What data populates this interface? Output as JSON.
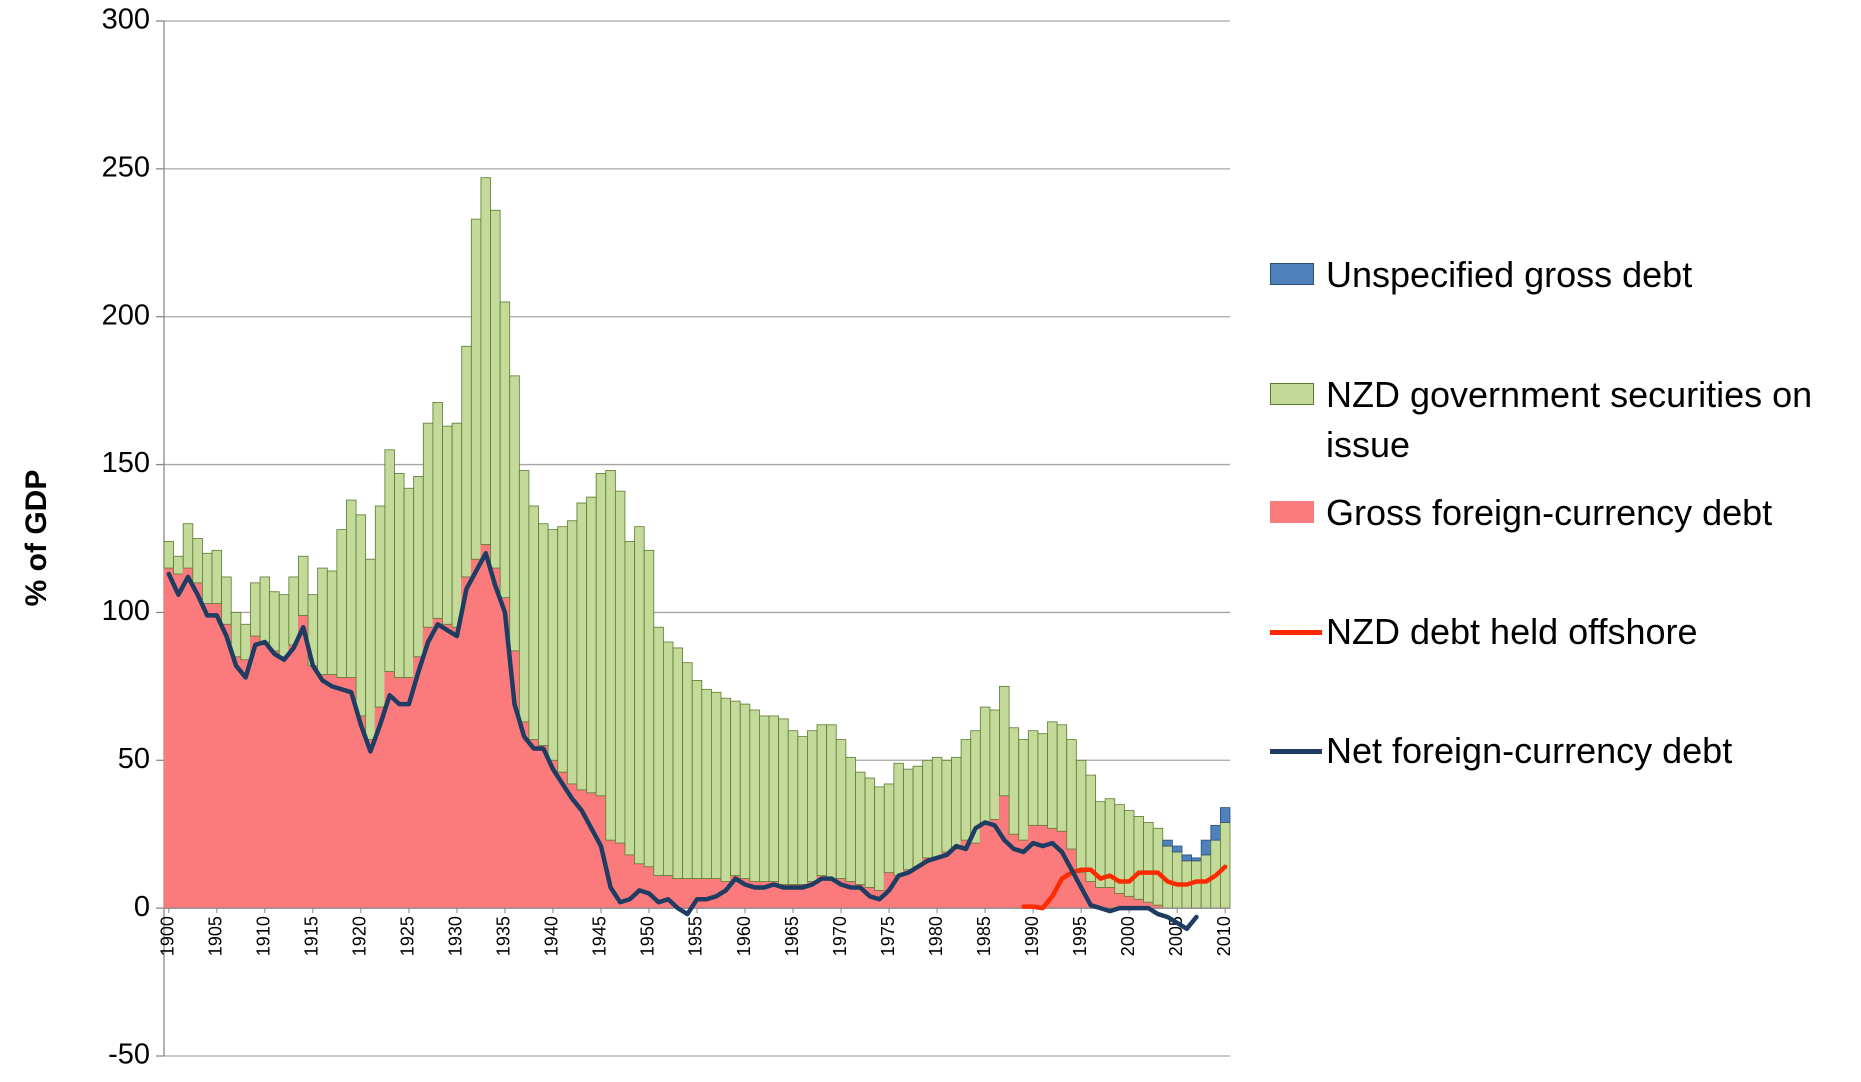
{
  "chart_data": {
    "type": "bar",
    "ylabel": "% of GDP",
    "x": [
      1900,
      1901,
      1902,
      1903,
      1904,
      1905,
      1906,
      1907,
      1908,
      1909,
      1910,
      1911,
      1912,
      1913,
      1914,
      1915,
      1916,
      1917,
      1918,
      1919,
      1920,
      1921,
      1922,
      1923,
      1924,
      1925,
      1926,
      1927,
      1928,
      1929,
      1930,
      1931,
      1932,
      1933,
      1934,
      1935,
      1936,
      1937,
      1938,
      1939,
      1940,
      1941,
      1942,
      1943,
      1944,
      1945,
      1946,
      1947,
      1948,
      1949,
      1950,
      1951,
      1952,
      1953,
      1954,
      1955,
      1956,
      1957,
      1958,
      1959,
      1960,
      1961,
      1962,
      1963,
      1964,
      1965,
      1966,
      1967,
      1968,
      1969,
      1970,
      1971,
      1972,
      1973,
      1974,
      1975,
      1976,
      1977,
      1978,
      1979,
      1980,
      1981,
      1982,
      1983,
      1984,
      1985,
      1986,
      1987,
      1988,
      1989,
      1990,
      1991,
      1992,
      1993,
      1994,
      1995,
      1996,
      1997,
      1998,
      1999,
      2000,
      2001,
      2002,
      2003,
      2004,
      2005,
      2006,
      2007,
      2008,
      2009,
      2010
    ],
    "xlim": [
      1899.5,
      2010.5
    ],
    "xticks": [
      1900,
      1905,
      1910,
      1915,
      1920,
      1925,
      1930,
      1935,
      1940,
      1945,
      1950,
      1955,
      1960,
      1965,
      1970,
      1975,
      1980,
      1985,
      1990,
      1995,
      2000,
      2005,
      2010
    ],
    "ylim": [
      -50,
      300
    ],
    "yticks": [
      -50,
      0,
      50,
      100,
      150,
      200,
      250,
      300
    ],
    "grid": true,
    "legend": "right",
    "series": [
      {
        "name": "Unspecified gross debt",
        "type": "bar",
        "stack_order": 3,
        "color": "#4f81bd",
        "edge": "#2c4f78",
        "values": [
          null,
          null,
          null,
          null,
          null,
          null,
          null,
          null,
          null,
          null,
          null,
          null,
          null,
          null,
          null,
          null,
          null,
          null,
          null,
          null,
          null,
          null,
          null,
          null,
          null,
          null,
          null,
          null,
          null,
          null,
          null,
          null,
          null,
          null,
          null,
          null,
          null,
          null,
          null,
          null,
          null,
          null,
          null,
          null,
          null,
          null,
          null,
          null,
          null,
          null,
          null,
          null,
          null,
          null,
          null,
          null,
          null,
          null,
          null,
          null,
          null,
          null,
          null,
          null,
          null,
          null,
          null,
          null,
          null,
          null,
          null,
          null,
          null,
          null,
          null,
          null,
          null,
          null,
          null,
          null,
          null,
          null,
          null,
          null,
          null,
          null,
          null,
          null,
          null,
          null,
          null,
          null,
          null,
          null,
          null,
          null,
          null,
          null,
          null,
          null,
          null,
          null,
          null,
          null,
          2,
          2,
          2,
          1,
          5,
          5,
          5
        ]
      },
      {
        "name": "NZD government securities on issue",
        "type": "bar",
        "stack_order": 2,
        "color": "#c4da9a",
        "edge": "#5a7a2c",
        "values": [
          9,
          6,
          15,
          15,
          17,
          18,
          16,
          15,
          12,
          18,
          22,
          20,
          21,
          23,
          20,
          24,
          36,
          35,
          50,
          60,
          68,
          61,
          68,
          75,
          69,
          64,
          61,
          69,
          73,
          67,
          69,
          78,
          115,
          124,
          121,
          100,
          93,
          85,
          79,
          75,
          78,
          83,
          89,
          97,
          100,
          109,
          125,
          119,
          106,
          114,
          107,
          84,
          79,
          78,
          73,
          67,
          64,
          63,
          62,
          59,
          59,
          58,
          56,
          56,
          56,
          52,
          50,
          51,
          51,
          52,
          47,
          42,
          38,
          37,
          35,
          30,
          38,
          34,
          34,
          33,
          34,
          31,
          31,
          34,
          38,
          39,
          37,
          37,
          36,
          34,
          32,
          31,
          36,
          36,
          37,
          38,
          36,
          29,
          30,
          30,
          29,
          28,
          27,
          26,
          21,
          19,
          16,
          16,
          18,
          23,
          29
        ]
      },
      {
        "name": "Gross foreign-currency debt",
        "type": "bar",
        "stack_order": 1,
        "color": "#fb7b7d",
        "edge": "#fb7b7d",
        "values": [
          115,
          113,
          115,
          110,
          103,
          103,
          96,
          85,
          84,
          92,
          90,
          87,
          85,
          89,
          99,
          82,
          79,
          79,
          78,
          78,
          65,
          57,
          68,
          80,
          78,
          78,
          85,
          95,
          98,
          96,
          95,
          112,
          118,
          123,
          115,
          105,
          87,
          63,
          57,
          55,
          50,
          46,
          42,
          40,
          39,
          38,
          23,
          22,
          18,
          15,
          14,
          11,
          11,
          10,
          10,
          10,
          10,
          10,
          9,
          11,
          10,
          9,
          9,
          9,
          8,
          8,
          8,
          9,
          11,
          10,
          10,
          9,
          8,
          7,
          6,
          12,
          11,
          13,
          14,
          17,
          17,
          19,
          20,
          23,
          22,
          29,
          30,
          38,
          25,
          23,
          28,
          28,
          27,
          26,
          20,
          12,
          9,
          7,
          7,
          5,
          4,
          3,
          2,
          1,
          0,
          0,
          0,
          0,
          0,
          0,
          0
        ]
      },
      {
        "name": "NZD debt held offshore",
        "type": "line",
        "color": "#ff2a00",
        "values": [
          null,
          null,
          null,
          null,
          null,
          null,
          null,
          null,
          null,
          null,
          null,
          null,
          null,
          null,
          null,
          null,
          null,
          null,
          null,
          null,
          null,
          null,
          null,
          null,
          null,
          null,
          null,
          null,
          null,
          null,
          null,
          null,
          null,
          null,
          null,
          null,
          null,
          null,
          null,
          null,
          null,
          null,
          null,
          null,
          null,
          null,
          null,
          null,
          null,
          null,
          null,
          null,
          null,
          null,
          null,
          null,
          null,
          null,
          null,
          null,
          null,
          null,
          null,
          null,
          null,
          null,
          null,
          null,
          null,
          null,
          null,
          null,
          null,
          null,
          null,
          null,
          null,
          null,
          null,
          null,
          null,
          null,
          null,
          null,
          null,
          null,
          null,
          null,
          null,
          0.5,
          0.5,
          0,
          4,
          10,
          12,
          13,
          13,
          10,
          11,
          9,
          9,
          12,
          12,
          12,
          9,
          8,
          8,
          9,
          9,
          11,
          14
        ]
      },
      {
        "name": "Net foreign-currency debt",
        "type": "line",
        "color": "#1f3d63",
        "values": [
          113,
          106,
          112,
          106,
          99,
          99,
          92,
          82,
          78,
          89,
          90,
          86,
          84,
          88,
          95,
          82,
          77,
          75,
          74,
          73,
          62,
          53,
          62,
          72,
          69,
          69,
          80,
          90,
          96,
          94,
          92,
          108,
          114,
          120,
          109,
          100,
          69,
          58,
          54,
          54,
          47,
          42,
          37,
          33,
          27,
          21,
          7,
          2,
          3,
          6,
          5,
          2,
          3,
          0,
          -2,
          3,
          3,
          4,
          6,
          10,
          8,
          7,
          7,
          8,
          7,
          7,
          7,
          8,
          10,
          10,
          8,
          7,
          7,
          4,
          3,
          6,
          11,
          12,
          14,
          16,
          17,
          18,
          21,
          20,
          27,
          29,
          28,
          23,
          20,
          19,
          22,
          21,
          22,
          19,
          13,
          7,
          1,
          0,
          -1,
          0,
          0,
          0,
          0,
          -2,
          -3,
          -5,
          -7,
          -3,
          null,
          null,
          null
        ]
      }
    ]
  }
}
